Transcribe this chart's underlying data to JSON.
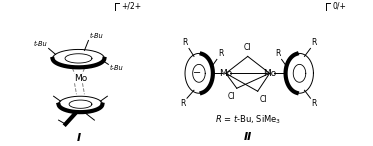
{
  "bg_color": "#ffffff",
  "fig_width": 3.73,
  "fig_height": 1.46,
  "dpi": 100,
  "label_I": "I",
  "label_II": "II",
  "charge_I": "+/2+",
  "charge_II": "0/+",
  "tBu": "t-Bu",
  "Mo_label": "Mo",
  "Cl_label": "Cl",
  "minus": "−"
}
